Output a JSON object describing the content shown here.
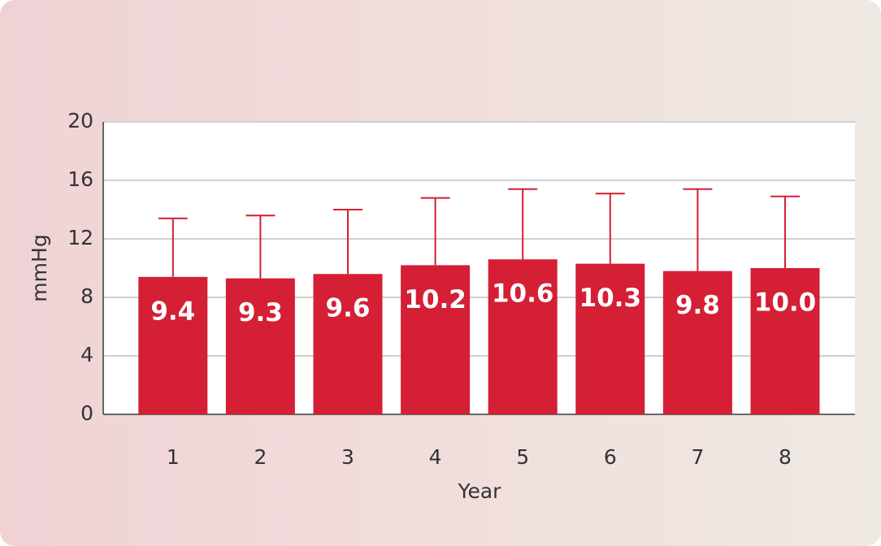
{
  "chart_data": {
    "type": "bar",
    "x_label": "Year",
    "y_label": "mmHg",
    "categories": [
      "1",
      "2",
      "3",
      "4",
      "5",
      "6",
      "7",
      "8"
    ],
    "values": [
      9.4,
      9.3,
      9.6,
      10.2,
      10.6,
      10.3,
      9.8,
      10.0
    ],
    "value_labels": [
      "9.4",
      "9.3",
      "9.6",
      "10.2",
      "10.6",
      "10.3",
      "9.8",
      "10.0"
    ],
    "errors": [
      4.0,
      4.3,
      4.4,
      4.6,
      4.8,
      4.8,
      5.6,
      4.9
    ],
    "color": "#d41f35",
    "ylim": [
      0,
      20
    ],
    "yticks": [
      0,
      4,
      8,
      12,
      16,
      20
    ],
    "grid": true
  }
}
